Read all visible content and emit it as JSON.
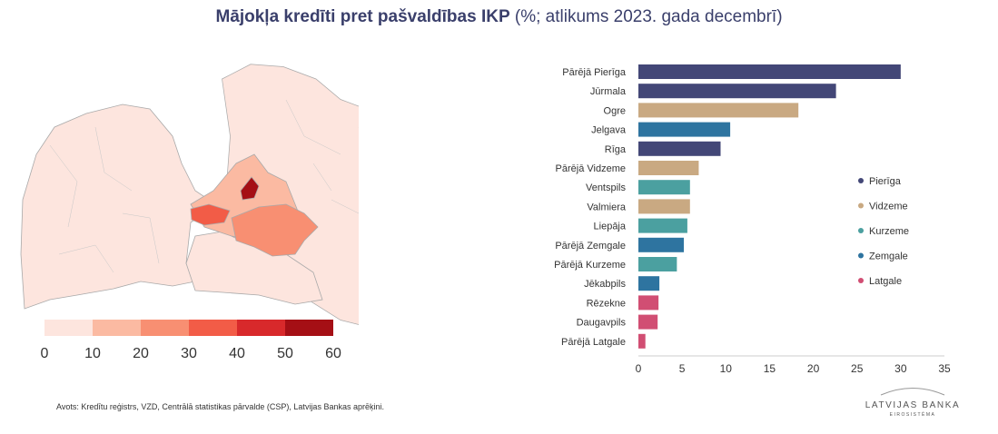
{
  "header": {
    "title_bold": "Mājokļa kredīti pret pašvaldības IKP",
    "title_rest": " (%; atlikums 2023. gada decembrī)"
  },
  "map": {
    "scale": {
      "colors": [
        "#fde5de",
        "#fbbaa2",
        "#f88f72",
        "#f25c47",
        "#d8292b",
        "#a50f15"
      ],
      "tick_labels": [
        "0",
        "10",
        "20",
        "30",
        "40",
        "50",
        "60"
      ]
    }
  },
  "chart_data": {
    "type": "bar",
    "orientation": "horizontal",
    "categories": [
      "Pārējā Pierīga",
      "Jūrmala",
      "Ogre",
      "Jelgava",
      "Rīga",
      "Pārējā Vidzeme",
      "Ventspils",
      "Valmiera",
      "Liepāja",
      "Pārējā Zemgale",
      "Pārējā Kurzeme",
      "Jēkabpils",
      "Rēzekne",
      "Daugavpils",
      "Pārējā Latgale"
    ],
    "values": [
      30.0,
      22.6,
      18.3,
      10.5,
      9.4,
      6.9,
      5.9,
      5.9,
      5.6,
      5.2,
      4.4,
      2.4,
      2.3,
      2.2,
      0.8
    ],
    "regions": [
      "Pierīga",
      "Pierīga",
      "Vidzeme",
      "Zemgale",
      "Pierīga",
      "Vidzeme",
      "Kurzeme",
      "Vidzeme",
      "Kurzeme",
      "Zemgale",
      "Kurzeme",
      "Zemgale",
      "Latgale",
      "Latgale",
      "Latgale"
    ],
    "xlim": [
      0,
      35
    ],
    "xticks": [
      0,
      5,
      10,
      15,
      20,
      25,
      30,
      35
    ],
    "legend": [
      {
        "name": "Pierīga",
        "color": "#434777"
      },
      {
        "name": "Vidzeme",
        "color": "#c9a982"
      },
      {
        "name": "Kurzeme",
        "color": "#4ba0a0"
      },
      {
        "name": "Zemgale",
        "color": "#2e74a0"
      },
      {
        "name": "Latgale",
        "color": "#d14e73"
      }
    ],
    "legend_position": "right"
  },
  "footer": {
    "source": "Avots: Kredītu reģistrs, VZD, Centrālā statistikas pārvalde (CSP), Latvijas Bankas aprēķini.",
    "logo_name": "LATVIJAS BANKA",
    "logo_sub": "EIROSISTĒMA"
  }
}
